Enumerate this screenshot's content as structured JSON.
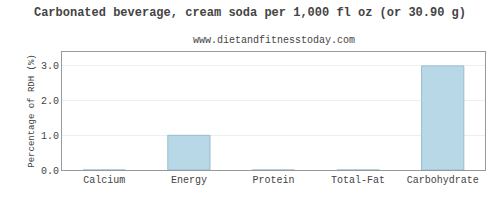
{
  "chart_data": {
    "type": "bar",
    "title": "Carbonated beverage, cream soda per 1,000 fl oz (or 30.90 g)",
    "subtitle": "www.dietandfitnesstoday.com",
    "ylabel": "Percentage of RDH (%)",
    "categories": [
      "Calcium",
      "Energy",
      "Protein",
      "Total-Fat",
      "Carbohydrate"
    ],
    "values": [
      0.0,
      1.0,
      0.0,
      0.0,
      3.0
    ],
    "color": "#b8d8e8",
    "ylim": [
      0,
      3.4
    ],
    "yticks": [
      {
        "value": 0,
        "label": "0.0"
      },
      {
        "value": 1,
        "label": "1.0"
      },
      {
        "value": 2,
        "label": "2.0"
      },
      {
        "value": 3,
        "label": "3.0"
      }
    ],
    "grid": true
  }
}
